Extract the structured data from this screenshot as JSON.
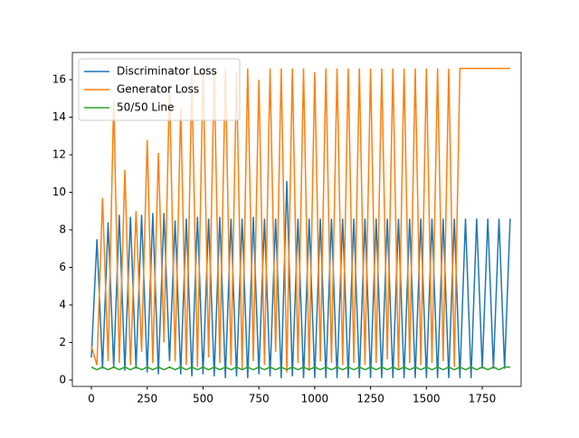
{
  "chart_data": {
    "type": "line",
    "x": [
      0,
      25,
      50,
      75,
      100,
      125,
      150,
      175,
      200,
      225,
      250,
      275,
      300,
      325,
      350,
      375,
      400,
      425,
      450,
      475,
      500,
      525,
      550,
      575,
      600,
      625,
      650,
      675,
      700,
      725,
      750,
      775,
      800,
      825,
      850,
      875,
      900,
      925,
      950,
      975,
      1000,
      1025,
      1050,
      1075,
      1100,
      1125,
      1150,
      1175,
      1200,
      1225,
      1250,
      1275,
      1300,
      1325,
      1350,
      1375,
      1400,
      1425,
      1450,
      1475,
      1500,
      1525,
      1550,
      1575,
      1600,
      1625,
      1650,
      1675,
      1700,
      1725,
      1750,
      1775,
      1800,
      1825,
      1850,
      1875
    ],
    "series": [
      {
        "name": "Discriminator Loss",
        "color": "#1f77b4",
        "values": [
          1.2,
          7.5,
          0.6,
          8.4,
          0.7,
          8.8,
          0.5,
          8.7,
          0.6,
          8.8,
          0.4,
          8.9,
          0.3,
          8.9,
          1.0,
          8.5,
          0.3,
          8.6,
          0.2,
          8.7,
          0.3,
          8.6,
          0.2,
          8.7,
          0.1,
          8.6,
          0.2,
          8.6,
          0.1,
          8.7,
          0.3,
          8.6,
          0.2,
          8.6,
          0.1,
          10.6,
          0.2,
          8.6,
          0.1,
          8.6,
          0.1,
          8.6,
          0.1,
          8.6,
          0.1,
          8.6,
          0.1,
          8.6,
          0.1,
          8.6,
          0.1,
          8.6,
          0.1,
          8.6,
          0.1,
          8.6,
          0.1,
          8.6,
          0.1,
          8.6,
          0.1,
          8.6,
          0.1,
          8.6,
          0.1,
          8.6,
          0.1,
          8.6,
          0.1,
          8.6,
          0.6,
          8.6,
          0.6,
          8.6,
          0.6,
          8.6
        ]
      },
      {
        "name": "Generator Loss",
        "color": "#ff7f0e",
        "values": [
          1.8,
          0.8,
          9.7,
          1.0,
          14.9,
          0.9,
          11.2,
          0.8,
          9.0,
          1.5,
          12.8,
          0.9,
          12.1,
          2.0,
          15.8,
          1.0,
          14.5,
          0.8,
          16.2,
          0.7,
          16.6,
          1.2,
          16.5,
          0.9,
          16.6,
          0.8,
          16.4,
          0.6,
          16.6,
          1.0,
          16.0,
          0.8,
          16.6,
          1.5,
          16.6,
          0.4,
          16.6,
          0.9,
          16.6,
          0.5,
          16.4,
          1.0,
          16.6,
          0.9,
          16.6,
          0.8,
          16.6,
          0.9,
          16.6,
          0.8,
          16.6,
          0.9,
          16.6,
          1.1,
          16.6,
          0.6,
          16.6,
          0.9,
          16.6,
          0.8,
          16.6,
          0.9,
          16.6,
          1.0,
          16.6,
          0.7,
          16.6,
          16.6,
          16.6,
          16.6,
          16.6,
          16.6,
          16.6,
          16.6,
          16.6,
          16.6
        ]
      },
      {
        "name": "50/50 Line",
        "color": "#2ca02c",
        "values": [
          0.69,
          0.55,
          0.69,
          0.55,
          0.69,
          0.55,
          0.69,
          0.55,
          0.69,
          0.55,
          0.69,
          0.55,
          0.69,
          0.55,
          0.69,
          0.55,
          0.69,
          0.55,
          0.69,
          0.55,
          0.69,
          0.55,
          0.69,
          0.55,
          0.69,
          0.55,
          0.69,
          0.55,
          0.69,
          0.55,
          0.69,
          0.55,
          0.69,
          0.55,
          0.69,
          0.55,
          0.69,
          0.55,
          0.69,
          0.55,
          0.69,
          0.55,
          0.69,
          0.55,
          0.69,
          0.55,
          0.69,
          0.55,
          0.69,
          0.55,
          0.69,
          0.55,
          0.69,
          0.55,
          0.69,
          0.55,
          0.69,
          0.55,
          0.69,
          0.55,
          0.69,
          0.55,
          0.69,
          0.55,
          0.69,
          0.55,
          0.69,
          0.55,
          0.69,
          0.55,
          0.69,
          0.55,
          0.69,
          0.55,
          0.69,
          0.69
        ]
      }
    ],
    "xlim": [
      -85,
      1924
    ],
    "ylim": [
      -0.34,
      17.45
    ],
    "xticks": [
      0,
      250,
      500,
      750,
      1000,
      1250,
      1500,
      1750
    ],
    "yticks": [
      0,
      2,
      4,
      6,
      8,
      10,
      12,
      14,
      16
    ],
    "legend": "upper left"
  }
}
